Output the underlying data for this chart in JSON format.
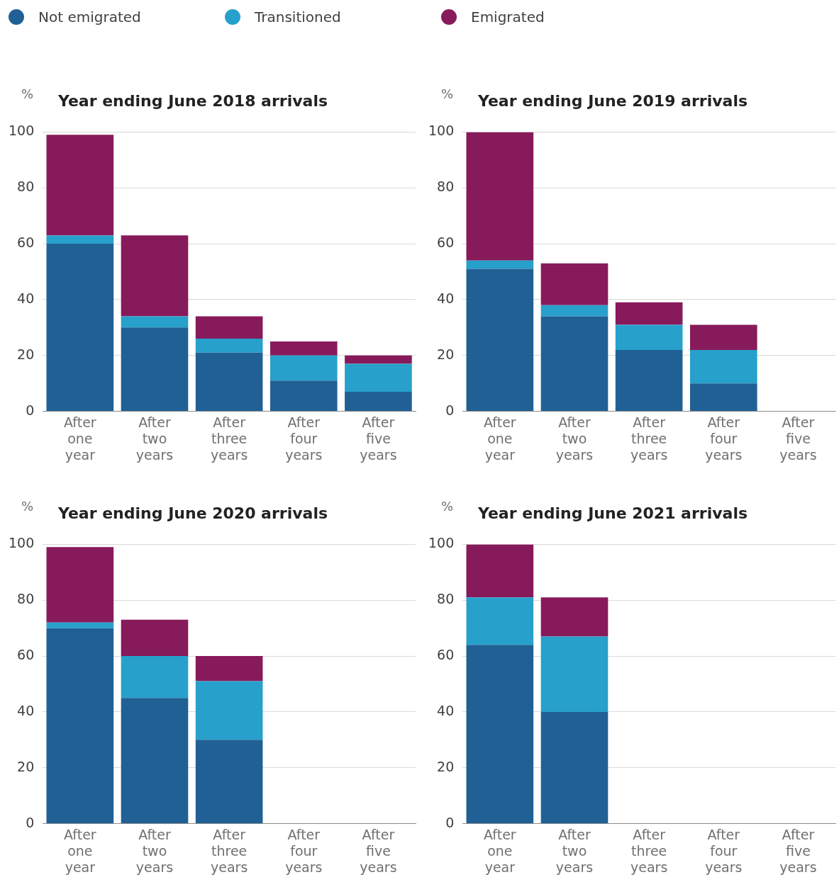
{
  "chart_data": [
    {
      "type": "bar",
      "title": "Year ending June 2018 arrivals",
      "ylabel": "%",
      "stacked": true,
      "legend": "top",
      "grid": "y",
      "categories": [
        "After one year",
        "After two years",
        "After three years",
        "After four years",
        "After five years"
      ],
      "ylim": [
        0,
        100
      ],
      "yticks": [
        0,
        20,
        40,
        60,
        80,
        100
      ],
      "series": [
        {
          "name": "Not emigrated",
          "color": "#206095",
          "values": [
            60,
            30,
            21,
            11,
            7
          ]
        },
        {
          "name": "Transitioned",
          "color": "#27a0cc",
          "values": [
            3,
            4,
            5,
            9,
            10
          ]
        },
        {
          "name": "Emigrated",
          "color": "#871a5b",
          "values": [
            36,
            29,
            8,
            5,
            3
          ]
        }
      ]
    },
    {
      "type": "bar",
      "title": "Year ending June 2019 arrivals",
      "ylabel": "%",
      "stacked": true,
      "grid": "y",
      "categories": [
        "After one year",
        "After two years",
        "After three years",
        "After four years",
        "After five years"
      ],
      "ylim": [
        0,
        100
      ],
      "yticks": [
        0,
        20,
        40,
        60,
        80,
        100
      ],
      "series": [
        {
          "color": "#206095",
          "values": [
            51,
            34,
            22,
            10,
            null
          ]
        },
        {
          "color": "#27a0cc",
          "values": [
            3,
            4,
            9,
            12,
            null
          ]
        },
        {
          "color": "#871a5b",
          "values": [
            46,
            15,
            8,
            9,
            null
          ]
        }
      ]
    },
    {
      "type": "bar",
      "title": "Year ending June 2020 arrivals",
      "ylabel": "%",
      "stacked": true,
      "grid": "y",
      "categories": [
        "After one year",
        "After two years",
        "After three years",
        "After four years",
        "After five years"
      ],
      "ylim": [
        0,
        100
      ],
      "yticks": [
        0,
        20,
        40,
        60,
        80,
        100
      ],
      "series": [
        {
          "color": "#206095",
          "values": [
            70,
            45,
            30,
            null,
            null
          ]
        },
        {
          "color": "#27a0cc",
          "values": [
            2,
            15,
            21,
            null,
            null
          ]
        },
        {
          "color": "#871a5b",
          "values": [
            27,
            13,
            9,
            null,
            null
          ]
        }
      ]
    },
    {
      "type": "bar",
      "title": "Year ending June 2021 arrivals",
      "ylabel": "%",
      "stacked": true,
      "grid": "y",
      "categories": [
        "After one year",
        "After two years",
        "After three years",
        "After four years",
        "After five years"
      ],
      "ylim": [
        0,
        100
      ],
      "yticks": [
        0,
        20,
        40,
        60,
        80,
        100
      ],
      "series": [
        {
          "color": "#206095",
          "values": [
            64,
            40,
            null,
            null,
            null
          ]
        },
        {
          "color": "#27a0cc",
          "values": [
            17,
            27,
            null,
            null,
            null
          ]
        },
        {
          "color": "#871a5b",
          "values": [
            19,
            14,
            null,
            null,
            null
          ]
        }
      ]
    }
  ]
}
